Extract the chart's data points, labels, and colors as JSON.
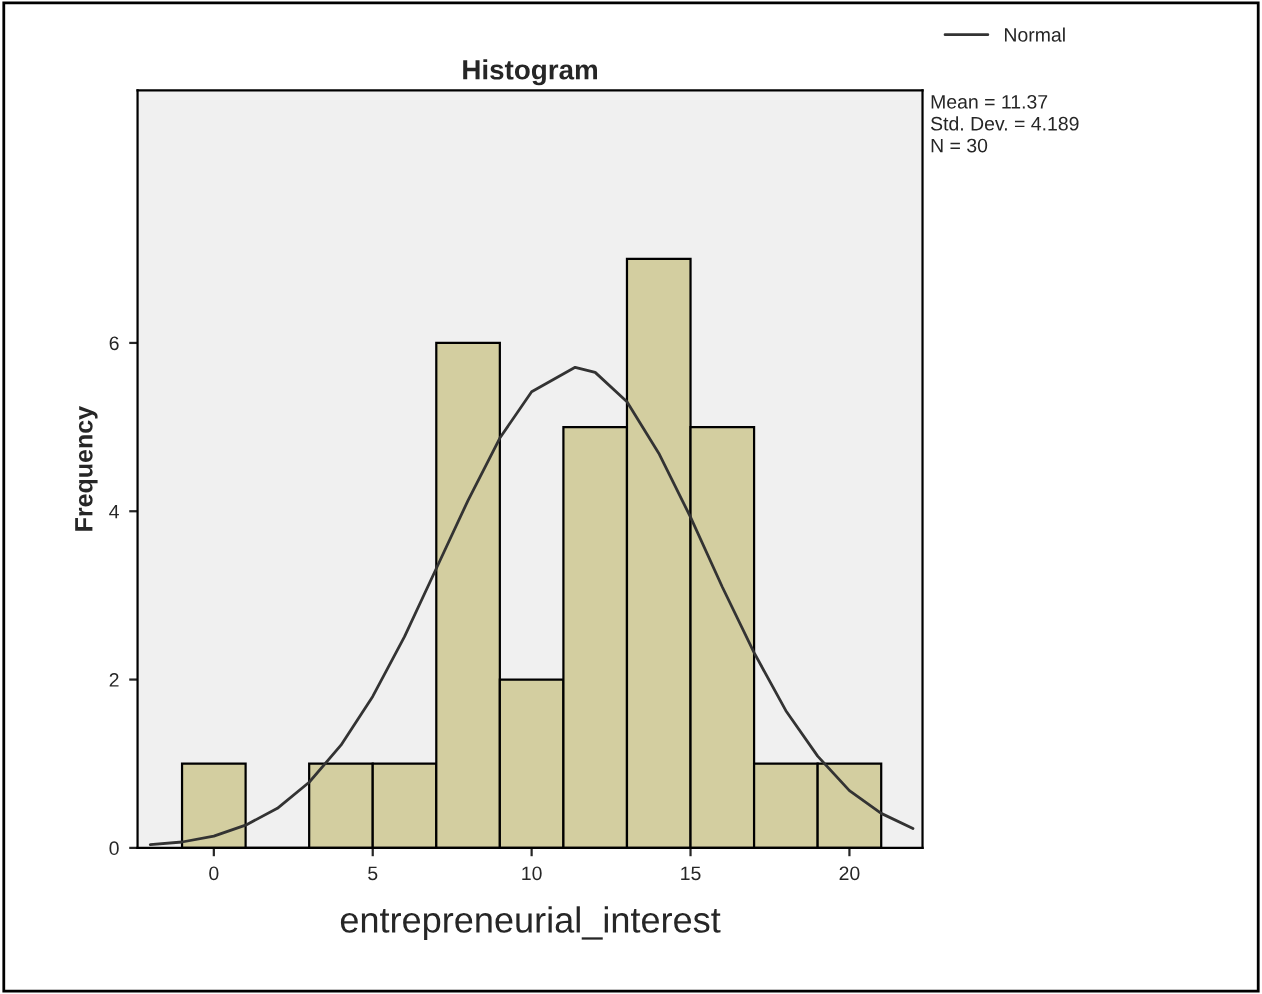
{
  "chart_data": {
    "type": "histogram",
    "title": "Histogram",
    "xlabel": "entrepreneurial_interest",
    "ylabel": "Frequency",
    "bins": [
      -1,
      1,
      3,
      5,
      7,
      9,
      11,
      13,
      15,
      17,
      19,
      21
    ],
    "values": [
      1,
      0,
      1,
      1,
      6,
      2,
      5,
      7,
      5,
      1,
      1
    ],
    "color": "#d3cea0",
    "series": [
      {
        "type": "line",
        "name": "Normal",
        "color": "#333333",
        "x": [
          -2,
          -1,
          0,
          1,
          2,
          3,
          4,
          5,
          6,
          7,
          8,
          9,
          10,
          11.37,
          12,
          13,
          14,
          15,
          16,
          17,
          18,
          19,
          20,
          21,
          22
        ],
        "values": [
          0.04,
          0.07,
          0.14,
          0.27,
          0.47,
          0.78,
          1.22,
          1.8,
          2.51,
          3.32,
          4.13,
          4.87,
          5.42,
          5.71,
          5.65,
          5.3,
          4.69,
          3.93,
          3.1,
          2.32,
          1.63,
          1.09,
          0.68,
          0.41,
          0.23
        ]
      }
    ],
    "xlim": [
      -2.4,
      22.3
    ],
    "xticks": [
      0,
      5,
      10,
      15,
      20
    ],
    "ylim": [
      0,
      9
    ],
    "yticks": [
      0,
      2,
      4,
      6
    ],
    "annotations": [
      "Mean = 11.37",
      "Std. Dev. = 4.189",
      "N = 30"
    ],
    "legend": "top right",
    "grid": false
  }
}
